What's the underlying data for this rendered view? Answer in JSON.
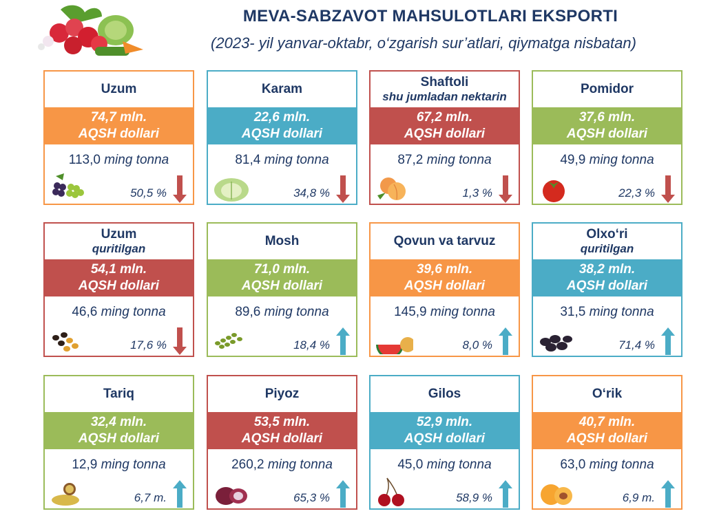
{
  "header": {
    "title": "MEVA-SABZAVOT MAHSULOTLARI EKSPORTI",
    "subtitle": "(2023- yil yanvar-oktabr, o‘zgarish sur’atlari, qiymatga nisbatan)"
  },
  "colors": {
    "orange": "#f79646",
    "teal": "#4bacc6",
    "red": "#c0504d",
    "green": "#9bbb59",
    "text": "#1f3864"
  },
  "cards": [
    {
      "name": "Uzum",
      "sub": "",
      "value": "74,7 mln.",
      "currency": "AQSH dollari",
      "tonnage_value": "113,0",
      "tonnage_unit": "ming tonna",
      "change": "50,5 %",
      "direction": "down",
      "color": "#f79646",
      "icon": "grapes-icon"
    },
    {
      "name": "Karam",
      "sub": "",
      "value": "22,6 mln.",
      "currency": "AQSH dollari",
      "tonnage_value": "81,4",
      "tonnage_unit": "ming tonna",
      "change": "34,8 %",
      "direction": "down",
      "color": "#4bacc6",
      "icon": "cabbage-icon"
    },
    {
      "name": "Shaftoli",
      "sub": "shu jumladan nektarin",
      "value": "67,2 mln.",
      "currency": "AQSH dollari",
      "tonnage_value": "87,2",
      "tonnage_unit": "ming tonna",
      "change": "1,3 %",
      "direction": "down",
      "color": "#c0504d",
      "icon": "peach-icon"
    },
    {
      "name": "Pomidor",
      "sub": "",
      "value": "37,6 mln.",
      "currency": "AQSH dollari",
      "tonnage_value": "49,9",
      "tonnage_unit": "ming tonna",
      "change": "22,3 %",
      "direction": "down",
      "color": "#9bbb59",
      "icon": "tomato-icon"
    },
    {
      "name": "Uzum",
      "sub": "quritilgan",
      "value": "54,1 mln.",
      "currency": "AQSH dollari",
      "tonnage_value": "46,6",
      "tonnage_unit": "ming tonna",
      "change": "17,6 %",
      "direction": "down",
      "color": "#c0504d",
      "icon": "raisins-icon"
    },
    {
      "name": "Mosh",
      "sub": "",
      "value": "71,0 mln.",
      "currency": "AQSH dollari",
      "tonnage_value": "89,6",
      "tonnage_unit": "ming tonna",
      "change": "18,4 %",
      "direction": "up",
      "color": "#9bbb59",
      "icon": "mung-bean-icon"
    },
    {
      "name": "Qovun va tarvuz",
      "sub": "",
      "value": "39,6 mln.",
      "currency": "AQSH dollari",
      "tonnage_value": "145,9",
      "tonnage_unit": "ming tonna",
      "change": "8,0 %",
      "direction": "up",
      "color": "#f79646",
      "icon": "melon-icon"
    },
    {
      "name": "Olxo‘ri",
      "sub": "quritilgan",
      "value": "38,2 mln.",
      "currency": "AQSH dollari",
      "tonnage_value": "31,5",
      "tonnage_unit": "ming tonna",
      "change": "71,4 %",
      "direction": "up",
      "color": "#4bacc6",
      "icon": "prunes-icon"
    },
    {
      "name": "Tariq",
      "sub": "",
      "value": "32,4 mln.",
      "currency": "AQSH dollari",
      "tonnage_value": "12,9",
      "tonnage_unit": "ming tonna",
      "change": "6,7 m.",
      "direction": "up",
      "color": "#9bbb59",
      "icon": "millet-icon"
    },
    {
      "name": "Piyoz",
      "sub": "",
      "value": "53,5 mln.",
      "currency": "AQSH dollari",
      "tonnage_value": "260,2",
      "tonnage_unit": "ming tonna",
      "change": "65,3 %",
      "direction": "up",
      "color": "#c0504d",
      "icon": "onion-icon"
    },
    {
      "name": "Gilos",
      "sub": "",
      "value": "52,9 mln.",
      "currency": "AQSH dollari",
      "tonnage_value": "45,0",
      "tonnage_unit": "ming tonna",
      "change": "58,9 %",
      "direction": "up",
      "color": "#4bacc6",
      "icon": "cherry-icon"
    },
    {
      "name": "O‘rik",
      "sub": "",
      "value": "40,7 mln.",
      "currency": "AQSH dollari",
      "tonnage_value": "63,0",
      "tonnage_unit": "ming tonna",
      "change": "6,9 m.",
      "direction": "up",
      "color": "#f79646",
      "icon": "apricot-icon"
    }
  ]
}
